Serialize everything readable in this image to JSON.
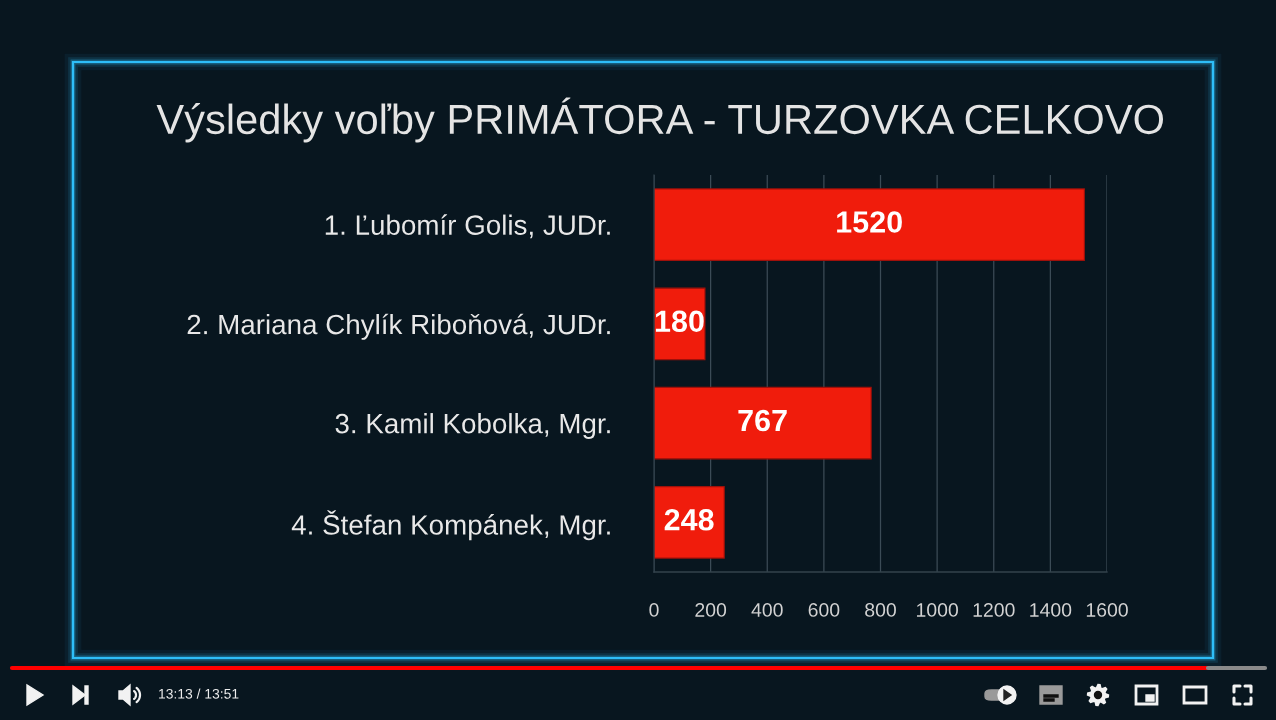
{
  "chart_data": {
    "type": "bar",
    "orientation": "horizontal",
    "title": "Výsledky voľby PRIMÁTORA - TURZOVKA CELKOVO",
    "categories": [
      "1. Ľubomír Golis, JUDr.",
      "2. Mariana Chylík Riboňová, JUDr.",
      "3. Kamil Kobolka, Mgr.",
      "4. Štefan Kompánek, Mgr."
    ],
    "values": [
      1520,
      180,
      767,
      248
    ],
    "color": "#f01c0c",
    "xlim": [
      0,
      1600
    ],
    "xticks": [
      0,
      200,
      400,
      600,
      800,
      1000,
      1200,
      1400,
      1600
    ],
    "grid": "x",
    "data_labels": true,
    "annotations": [
      "13:13 / 13:51"
    ]
  }
}
